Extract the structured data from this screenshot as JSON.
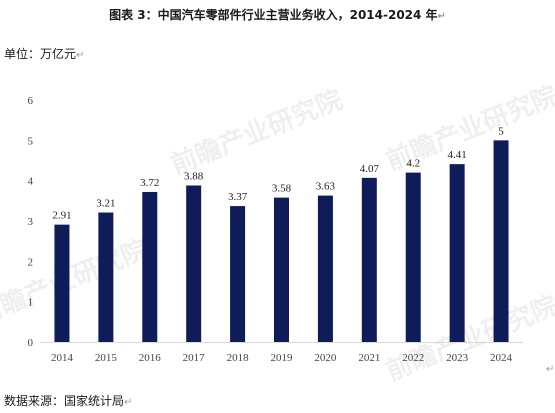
{
  "title": "图表 3：中国汽车零部件行业主营业务收入，2014-2024 年",
  "unit_label": "单位：万亿元",
  "source_label": "数据来源：国家统计局",
  "paragraph_mark": "↵",
  "watermark": "前瞻产业研究院",
  "colors": {
    "bar": "#0e1d5a",
    "axis": "#d9d9d9",
    "tick_text": "#444444"
  },
  "chart_data": {
    "type": "bar",
    "categories": [
      "2014",
      "2015",
      "2016",
      "2017",
      "2018",
      "2019",
      "2020",
      "2021",
      "2022",
      "2023",
      "2024"
    ],
    "values": [
      2.91,
      3.21,
      3.72,
      3.88,
      3.37,
      3.58,
      3.63,
      4.07,
      4.2,
      4.41,
      5
    ],
    "value_labels": [
      "2.91",
      "3.21",
      "3.72",
      "3.88",
      "3.37",
      "3.58",
      "3.63",
      "4.07",
      "4.2",
      "4.41",
      "5"
    ],
    "ylim": [
      0,
      6
    ],
    "yticks": [
      0,
      1,
      2,
      3,
      4,
      5,
      6
    ],
    "grid": false,
    "xlabel": "",
    "ylabel": ""
  }
}
